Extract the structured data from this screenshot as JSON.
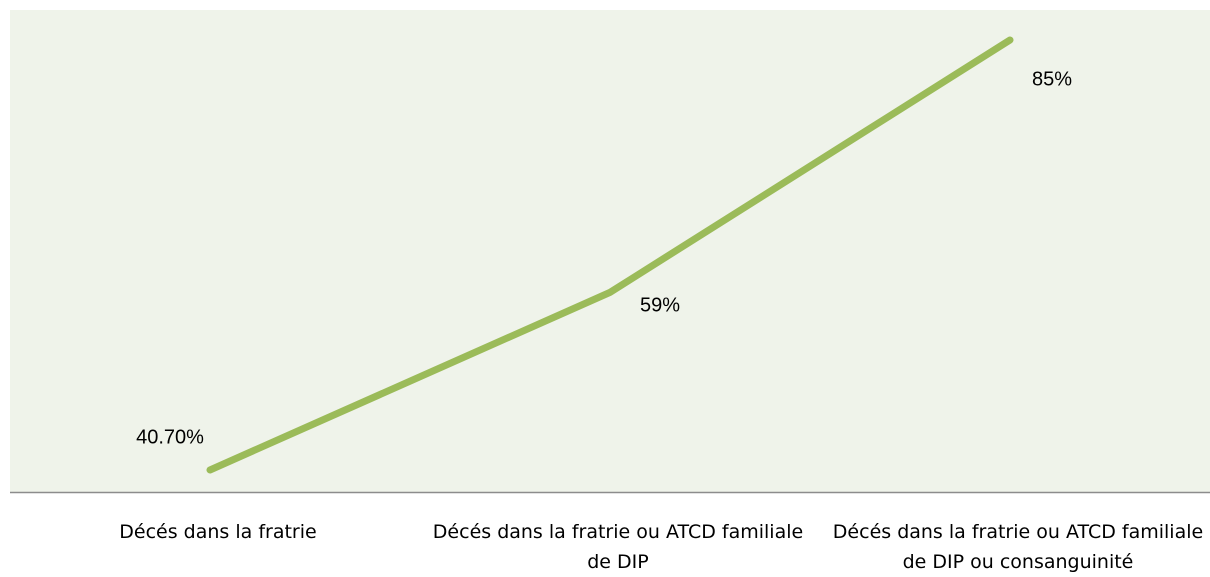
{
  "chart_data": {
    "type": "line",
    "categories": [
      "Décés dans la fratrie",
      "Décés dans la fratrie ou ATCD familiale de DIP",
      "Décés dans la fratrie ou ATCD familiale de DIP ou consanguinité"
    ],
    "series": [
      {
        "color": "#9bbb59",
        "values": [
          40.7,
          59,
          85
        ],
        "value_labels": [
          "40.70%",
          "59%",
          "85%"
        ]
      }
    ]
  }
}
